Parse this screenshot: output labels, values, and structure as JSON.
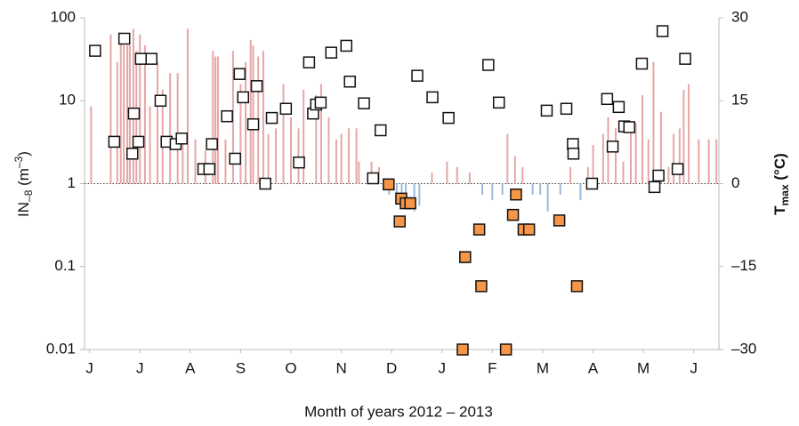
{
  "chart_data": {
    "type": "scatter_bar",
    "x_label": "Month of years 2012 – 2013",
    "y_label": {
      "main": "IN",
      "sub": "–8",
      "unit": " (m",
      "sup": "–3",
      "close": ")"
    },
    "y2_label": {
      "main": "T",
      "sub": "max",
      "unit": " (°C)"
    },
    "log_y": true,
    "xlim": [
      -0.1,
      12.5
    ],
    "xticks": [
      {
        "value": 0,
        "label": "J"
      },
      {
        "value": 1,
        "label": "J"
      },
      {
        "value": 2,
        "label": "A"
      },
      {
        "value": 3,
        "label": "S"
      },
      {
        "value": 4,
        "label": "O"
      },
      {
        "value": 5,
        "label": "N"
      },
      {
        "value": 6,
        "label": "D"
      },
      {
        "value": 7,
        "label": "J"
      },
      {
        "value": 8,
        "label": "F"
      },
      {
        "value": 9,
        "label": "M"
      },
      {
        "value": 10,
        "label": "A"
      },
      {
        "value": 11,
        "label": "M"
      },
      {
        "value": 12,
        "label": "J"
      }
    ],
    "ylim": [
      0.01,
      100
    ],
    "yticks": [
      0.01,
      0.1,
      1,
      10,
      100
    ],
    "y2lim": [
      -30,
      30
    ],
    "y2ticks": [
      {
        "value": -30,
        "label": "–30"
      },
      {
        "value": -15,
        "label": "–15"
      },
      0,
      15,
      30
    ],
    "series": [
      {
        "kind": "bar",
        "axis": "y2",
        "color": "#e6a6a6",
        "negative_color": "#9bbbdd",
        "x": [
          0.03,
          0.42,
          0.55,
          0.62,
          0.68,
          0.75,
          0.8,
          0.87,
          0.93,
          1.0,
          1.1,
          1.2,
          1.35,
          1.45,
          1.6,
          1.75,
          1.85,
          1.95,
          2.1,
          2.3,
          2.45,
          2.5,
          2.55,
          2.7,
          2.85,
          3.0,
          3.1,
          3.2,
          3.25,
          3.35,
          3.45,
          3.55,
          3.7,
          3.85,
          4.0,
          4.15,
          4.25,
          4.5,
          4.6,
          4.75,
          4.9,
          5.0,
          5.15,
          5.3,
          5.35,
          5.6,
          5.75,
          5.95,
          6.1,
          6.2,
          6.28,
          6.45,
          6.55,
          6.8,
          7.1,
          7.3,
          7.55,
          7.8,
          8.0,
          8.2,
          8.3,
          8.45,
          8.6,
          8.8,
          8.95,
          9.1,
          9.35,
          9.55,
          9.75,
          9.9,
          10.0,
          10.2,
          10.3,
          10.45,
          10.6,
          10.75,
          10.85,
          10.98,
          11.1,
          11.2,
          11.35,
          11.5,
          11.6,
          11.72,
          11.8,
          11.9,
          12.1,
          12.3,
          12.45
        ],
        "values": [
          14,
          27,
          22,
          27,
          25,
          25,
          25,
          28,
          24,
          27,
          25,
          14,
          22,
          17,
          20,
          20,
          9,
          28,
          8,
          6,
          24,
          23,
          23,
          8,
          24,
          18,
          22,
          26,
          25,
          23,
          24,
          9,
          10,
          18,
          12,
          10,
          17,
          16,
          18,
          12,
          8,
          9,
          10,
          10,
          4,
          4,
          3,
          -2,
          -3,
          -2,
          -4,
          -5,
          -4,
          2,
          4,
          3,
          2,
          -2,
          -3,
          -2,
          9,
          5,
          3,
          -2,
          -2,
          -5,
          -2,
          3,
          -3,
          3,
          7,
          9,
          12,
          10,
          4,
          10,
          11,
          16,
          8,
          22,
          13,
          3,
          9,
          10,
          17,
          18,
          8,
          8,
          8
        ]
      },
      {
        "kind": "square",
        "color": "#ffffff",
        "x": [
          0.11,
          0.49,
          0.69,
          0.85,
          0.88,
          0.97,
          1.02,
          1.23,
          1.41,
          1.53,
          1.71,
          1.83,
          2.26,
          2.38,
          2.43,
          2.73,
          2.89,
          2.98,
          3.05,
          3.25,
          3.32,
          3.49,
          3.62,
          3.9,
          4.16,
          4.36,
          4.44,
          4.5,
          4.59,
          4.8,
          5.1,
          5.17,
          5.45,
          5.63,
          5.78,
          6.51,
          6.81,
          7.13,
          7.92,
          8.13,
          9.08,
          9.47,
          9.6,
          9.61,
          9.98,
          10.28,
          10.39,
          10.51,
          10.62,
          10.72,
          10.97,
          11.22,
          11.3,
          11.38,
          11.68,
          11.83
        ],
        "values": [
          40,
          3.2,
          56,
          2.3,
          7,
          3.2,
          32,
          32,
          10,
          3.2,
          3.0,
          3.5,
          1.5,
          1.5,
          3.0,
          6.5,
          2.0,
          21,
          11,
          5.2,
          15,
          1.0,
          6.2,
          8,
          1.8,
          29,
          7,
          9,
          9.5,
          38,
          46,
          17,
          9.3,
          1.16,
          4.4,
          20,
          11,
          6.2,
          27,
          9.5,
          7.6,
          8,
          3.0,
          2.3,
          1.0,
          10.5,
          2.8,
          8.4,
          4.9,
          4.8,
          28,
          0.91,
          1.25,
          69,
          1.5,
          32
        ]
      },
      {
        "kind": "square",
        "color": "#f79646",
        "x": [
          5.94,
          6.16,
          6.19,
          6.28,
          6.37,
          7.41,
          7.46,
          7.74,
          7.78,
          8.27,
          8.41,
          8.47,
          8.62,
          8.73,
          9.33,
          9.68
        ],
        "values": [
          0.98,
          0.35,
          0.66,
          0.58,
          0.58,
          0.01,
          0.13,
          0.28,
          0.058,
          0.01,
          0.42,
          0.74,
          0.28,
          0.28,
          0.36,
          0.058
        ]
      }
    ]
  }
}
